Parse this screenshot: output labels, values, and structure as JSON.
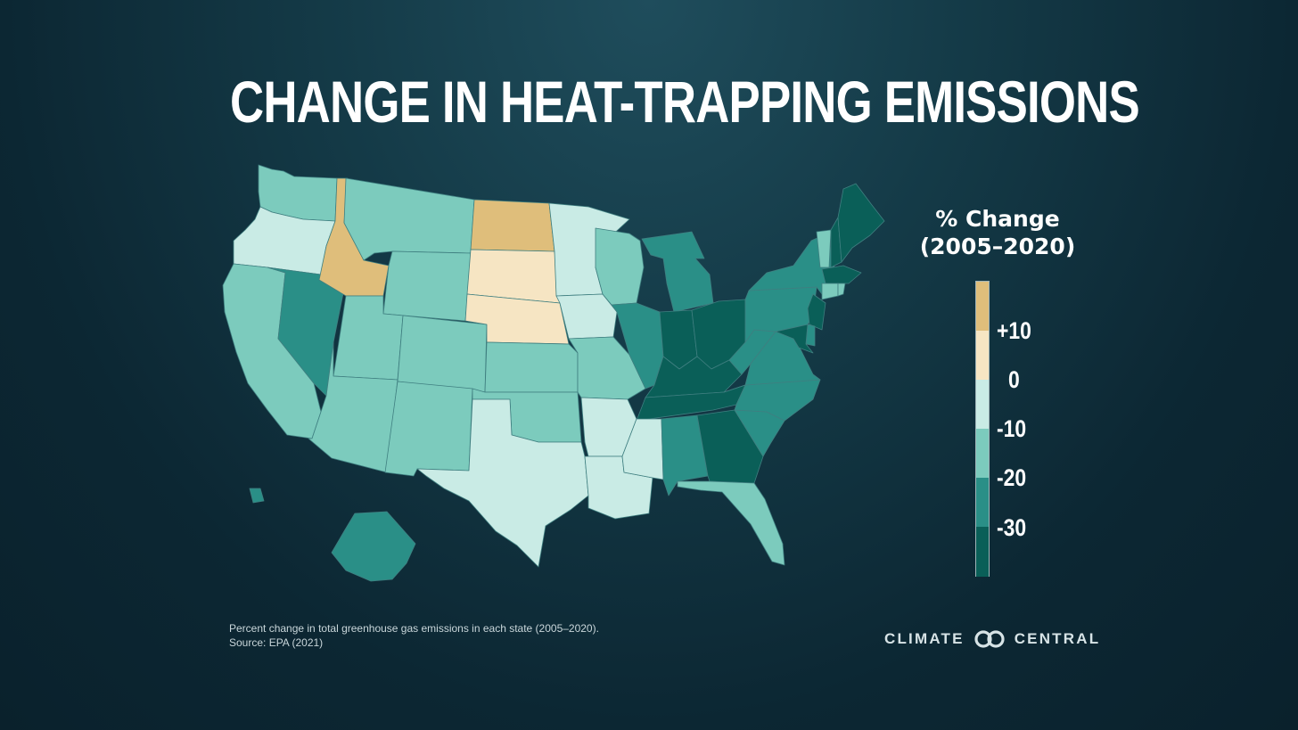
{
  "title": "CHANGE IN HEAT-TRAPPING EMISSIONS",
  "legend": {
    "title_line1": "% Change",
    "title_line2": "(2005–2020)",
    "ticks": [
      "+10",
      "0",
      "-10",
      "-20",
      "-30"
    ],
    "colors": [
      "#dfbe7b",
      "#f6e5c3",
      "#c9ebe5",
      "#7ccbbd",
      "#2a8f87",
      "#0a5f58"
    ]
  },
  "footnote": {
    "line1": "Percent change in total greenhouse gas emissions in each state (2005–2020).",
    "line2": "Source: EPA (2021)"
  },
  "logo": {
    "left_word": "CLIMATE",
    "right_word": "CENTRAL",
    "icon": "climate-central-rings-icon"
  },
  "states": {
    "WA": "-20",
    "OR": "-10",
    "CA": "-20",
    "NV": "-30",
    "ID": "+10",
    "MT": "-20",
    "WY": "-20",
    "UT": "-20",
    "AZ": "-20",
    "CO": "-20",
    "NM": "-20",
    "ND": "+10",
    "SD": "0",
    "NE": "0",
    "KS": "-20",
    "OK": "-20",
    "TX": "-10",
    "MN": "-10",
    "IA": "-10",
    "MO": "-20",
    "AR": "-10",
    "LA": "-10",
    "WI": "-20",
    "IL": "-30",
    "MI": "-30",
    "IN": "< -30",
    "OH": "< -30",
    "KY": "< -30",
    "TN": "< -30",
    "MS": "-10",
    "AL": "-30",
    "GA": "< -30",
    "FL": "-20",
    "SC": "-30",
    "NC": "-30",
    "VA": "-30",
    "WV": "-30",
    "PA": "-30",
    "NY": "-30",
    "VT": "-20",
    "NH": "< -30",
    "ME": "< -30",
    "MA": "< -30",
    "CT": "-20",
    "RI": "-20",
    "NJ": "< -30",
    "DE": "-30",
    "MD": "< -30",
    "AK": "-30",
    "HI": "-30"
  }
}
